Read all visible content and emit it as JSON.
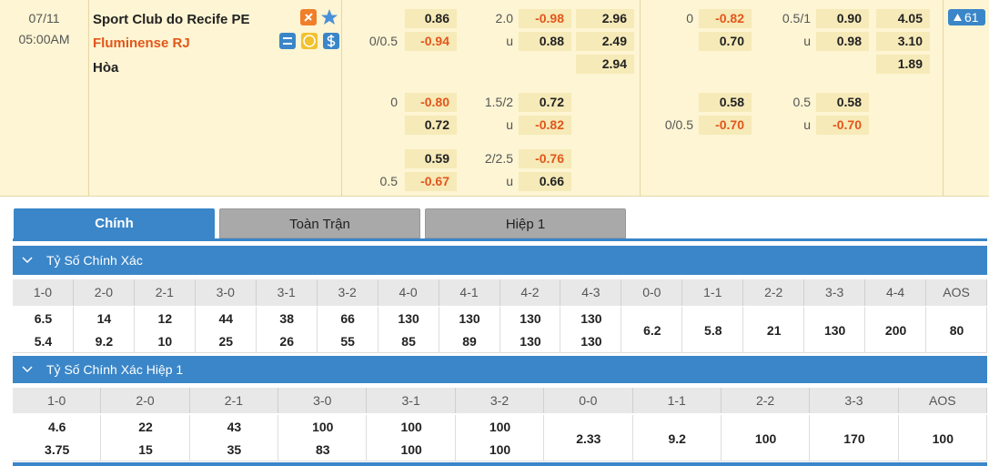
{
  "match": {
    "date": "07/11",
    "time": "05:00AM",
    "home": "Sport Club do Recife PE",
    "away": "Fluminense RJ",
    "draw": "Hòa",
    "more": "61"
  },
  "full_time_odds": [
    [
      {
        "hdp": "0.86",
        "ou_line": "2.0",
        "ou": "-0.98",
        "x12": "2.96"
      },
      {
        "hdp_line": "0/0.5",
        "hdp": "-0.94",
        "ou_line": "u",
        "ou": "0.88",
        "x12": "2.49"
      },
      {
        "x12": "2.94"
      }
    ],
    [
      {
        "hdp_line": "0",
        "hdp": "-0.80",
        "ou_line": "1.5/2",
        "ou": "0.72"
      },
      {
        "hdp": "0.72",
        "ou_line": "u",
        "ou": "-0.82"
      }
    ],
    [
      {
        "hdp": "0.59",
        "ou_line": "2/2.5",
        "ou": "-0.76"
      },
      {
        "hdp_line": "0.5",
        "hdp": "-0.67",
        "ou_line": "u",
        "ou": "0.66"
      }
    ]
  ],
  "first_half_odds": [
    [
      {
        "hdp_line": "0",
        "hdp": "-0.82",
        "ou_line": "0.5/1",
        "ou": "0.90",
        "x12": "4.05"
      },
      {
        "hdp": "0.70",
        "ou_line": "u",
        "ou": "0.98",
        "x12": "3.10"
      },
      {
        "x12": "1.89"
      }
    ],
    [
      {
        "hdp": "0.58",
        "ou_line": "0.5",
        "ou": "0.58"
      },
      {
        "hdp_line": "0/0.5",
        "hdp": "-0.70",
        "ou_line": "u",
        "ou": "-0.70"
      }
    ]
  ],
  "tabs": [
    "Chính",
    "Toàn Trận",
    "Hiệp 1"
  ],
  "sections": [
    {
      "title": "Tỷ Số Chính Xác",
      "columns": [
        {
          "label": "1-0",
          "values": [
            "6.5",
            "5.4"
          ]
        },
        {
          "label": "2-0",
          "values": [
            "14",
            "9.2"
          ]
        },
        {
          "label": "2-1",
          "values": [
            "12",
            "10"
          ]
        },
        {
          "label": "3-0",
          "values": [
            "44",
            "25"
          ]
        },
        {
          "label": "3-1",
          "values": [
            "38",
            "26"
          ]
        },
        {
          "label": "3-2",
          "values": [
            "66",
            "55"
          ]
        },
        {
          "label": "4-0",
          "values": [
            "130",
            "85"
          ]
        },
        {
          "label": "4-1",
          "values": [
            "130",
            "89"
          ]
        },
        {
          "label": "4-2",
          "values": [
            "130",
            "130"
          ]
        },
        {
          "label": "4-3",
          "values": [
            "130",
            "130"
          ]
        },
        {
          "label": "0-0",
          "values": [
            "6.2"
          ]
        },
        {
          "label": "1-1",
          "values": [
            "5.8"
          ]
        },
        {
          "label": "2-2",
          "values": [
            "21"
          ]
        },
        {
          "label": "3-3",
          "values": [
            "130"
          ]
        },
        {
          "label": "4-4",
          "values": [
            "200"
          ]
        },
        {
          "label": "AOS",
          "values": [
            "80"
          ]
        }
      ]
    },
    {
      "title": "Tỷ Số Chính Xác Hiệp 1",
      "columns": [
        {
          "label": "1-0",
          "values": [
            "4.6",
            "3.75"
          ]
        },
        {
          "label": "2-0",
          "values": [
            "22",
            "15"
          ]
        },
        {
          "label": "2-1",
          "values": [
            "43",
            "35"
          ]
        },
        {
          "label": "3-0",
          "values": [
            "100",
            "83"
          ]
        },
        {
          "label": "3-1",
          "values": [
            "100",
            "100"
          ]
        },
        {
          "label": "3-2",
          "values": [
            "100",
            "100"
          ]
        },
        {
          "label": "0-0",
          "values": [
            "2.33"
          ]
        },
        {
          "label": "1-1",
          "values": [
            "9.2"
          ]
        },
        {
          "label": "2-2",
          "values": [
            "100"
          ]
        },
        {
          "label": "3-3",
          "values": [
            "170"
          ]
        },
        {
          "label": "AOS",
          "values": [
            "100"
          ]
        }
      ]
    }
  ]
}
